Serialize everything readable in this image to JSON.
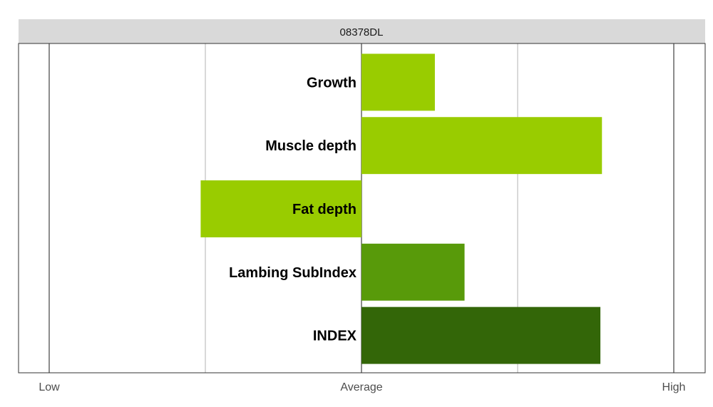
{
  "chart_data": {
    "type": "bar",
    "orientation": "horizontal",
    "title": "08378DL",
    "categories": [
      "Growth",
      "Muscle depth",
      "Fat depth",
      "Lambing SubIndex",
      "INDEX"
    ],
    "values": [
      0.47,
      1.54,
      -1.03,
      0.66,
      1.53
    ],
    "colors": [
      "#99cc00",
      "#99cc00",
      "#99cc00",
      "#589a0a",
      "#336608"
    ],
    "xlim": [
      -2,
      2
    ],
    "x_tick_values": [
      -2,
      0,
      2
    ],
    "x_tick_labels": [
      "Low",
      "Average",
      "High"
    ],
    "grid": true,
    "legend": "none",
    "xlabel": "",
    "ylabel": ""
  }
}
